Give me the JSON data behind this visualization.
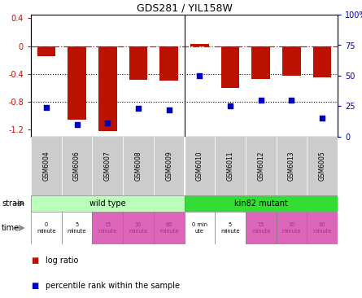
{
  "title": "GDS281 / YIL158W",
  "samples": [
    "GSM6004",
    "GSM6006",
    "GSM6007",
    "GSM6008",
    "GSM6009",
    "GSM6010",
    "GSM6011",
    "GSM6012",
    "GSM6013",
    "GSM6005"
  ],
  "log_ratio": [
    -0.15,
    -1.05,
    -1.22,
    -0.48,
    -0.49,
    0.03,
    -0.6,
    -0.47,
    -0.42,
    -0.45
  ],
  "percentile": [
    24,
    10,
    11,
    23,
    22,
    50,
    25,
    30,
    30,
    15
  ],
  "bar_color": "#bb1100",
  "dot_color": "#0000bb",
  "ylim_left": [
    -1.3,
    0.45
  ],
  "ylim_right": [
    0,
    100
  ],
  "right_ticks": [
    0,
    25,
    50,
    75,
    100
  ],
  "right_labels": [
    "0",
    "25",
    "50",
    "75",
    "100%"
  ],
  "left_ticks": [
    -1.2,
    -0.8,
    -0.4,
    0.0,
    0.4
  ],
  "left_labels": [
    "-1.2",
    "-0.8",
    "-0.4",
    "0",
    "0.4"
  ],
  "hline_y": 0,
  "hline_color": "#cc2200",
  "dotline_ticks": [
    -0.4,
    -0.8
  ],
  "dotline_color": "black",
  "strain_labels": [
    "wild type",
    "kin82 mutant"
  ],
  "strain_colors": [
    "#bbffbb",
    "#33dd33"
  ],
  "time_labels": [
    "0\nminute",
    "5\nminute",
    "15\nminute",
    "30\nminute",
    "60\nminute",
    "0 min\nute",
    "5\nminute",
    "15\nminute",
    "30\nminute",
    "60\nminute"
  ],
  "time_colors": [
    "white",
    "white",
    "#dd66bb",
    "#dd66bb",
    "#dd66bb",
    "white",
    "white",
    "#dd66bb",
    "#dd66bb",
    "#dd66bb"
  ],
  "time_text_colors": [
    "black",
    "black",
    "#993388",
    "#993388",
    "#993388",
    "black",
    "black",
    "#993388",
    "#993388",
    "#993388"
  ],
  "legend_entries": [
    "log ratio",
    "percentile rank within the sample"
  ],
  "legend_colors": [
    "#bb1100",
    "#0000bb"
  ],
  "sample_box_color": "#cccccc",
  "n_wt": 5,
  "n_mut": 5
}
